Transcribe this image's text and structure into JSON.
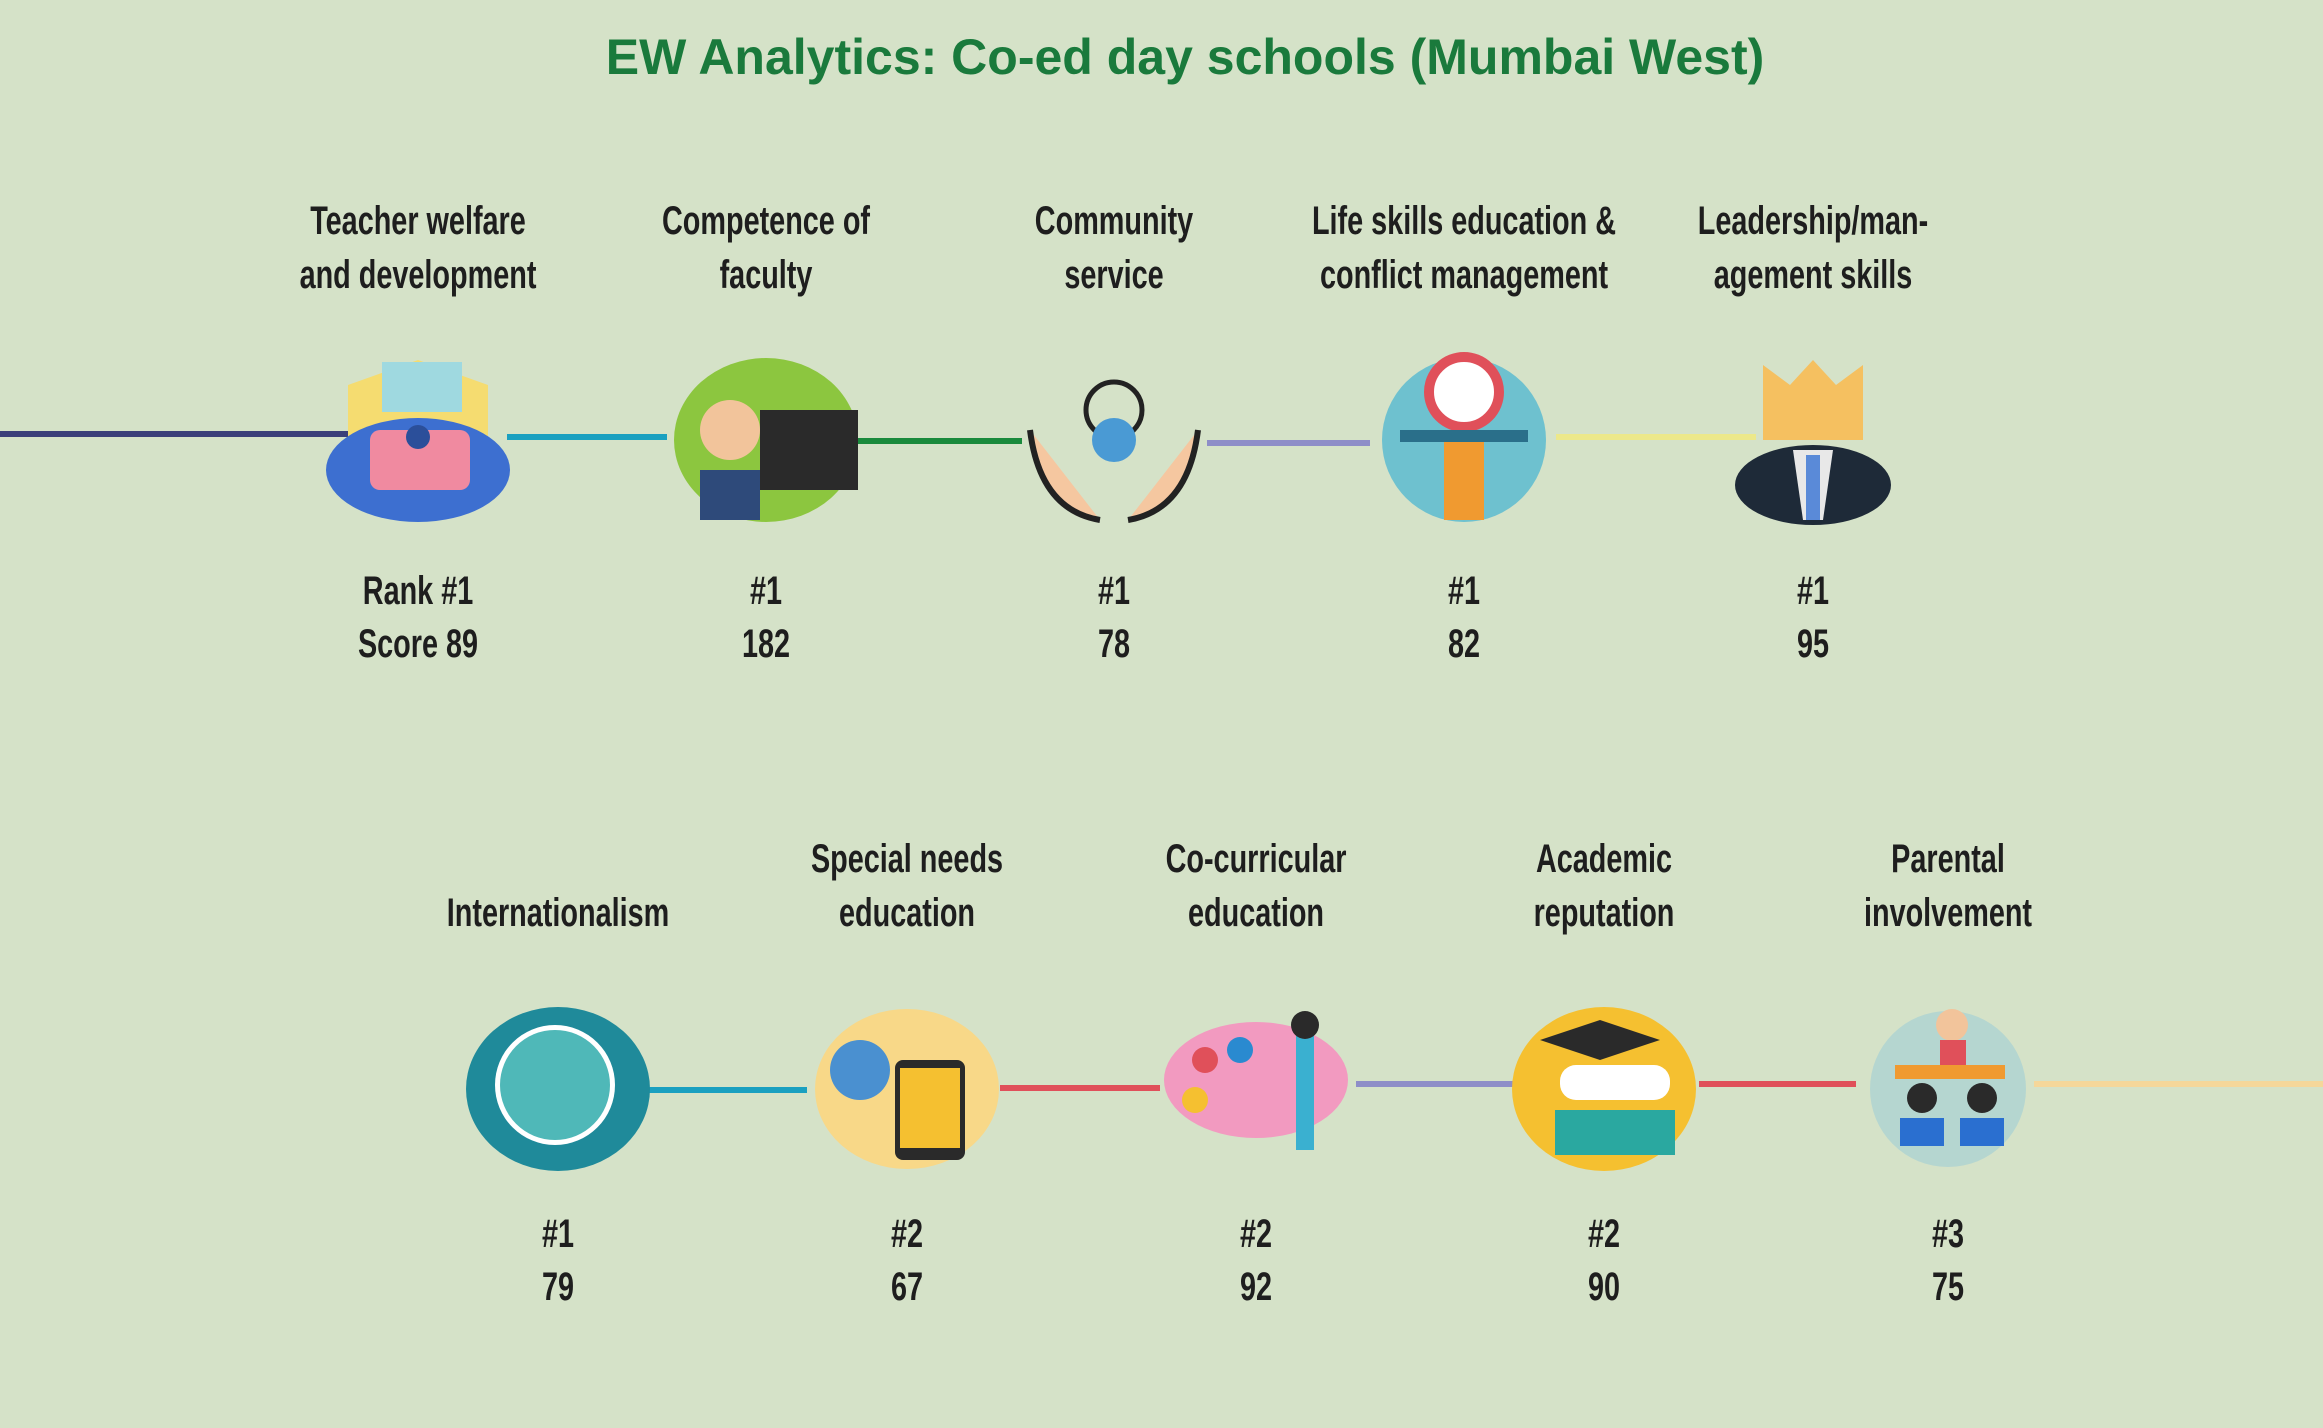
{
  "header": {
    "title": "EW Analytics: Co-ed day schools (Mumbai West)"
  },
  "rows": [
    [
      {
        "label": [
          "Teacher welfare",
          "and development"
        ],
        "rank": "Rank #1",
        "score": "Score 89"
      },
      {
        "label": [
          "Competence of",
          "faculty"
        ],
        "rank": "#1",
        "score": "182"
      },
      {
        "label": [
          "Community",
          "service"
        ],
        "rank": "#1",
        "score": "78"
      },
      {
        "label": [
          "Life skills education &",
          "conflict management"
        ],
        "rank": "#1",
        "score": "82"
      },
      {
        "label": [
          "Leadership/man-",
          "agement skills"
        ],
        "rank": "#1",
        "score": "95"
      }
    ],
    [
      {
        "label": [
          "Internationalism"
        ],
        "rank": "#1",
        "score": "79"
      },
      {
        "label": [
          "Special needs",
          "education"
        ],
        "rank": "#2",
        "score": "67"
      },
      {
        "label": [
          "Co-curricular",
          "education"
        ],
        "rank": "#2",
        "score": "92"
      },
      {
        "label": [
          "Academic",
          "reputation"
        ],
        "rank": "#2",
        "score": "90"
      },
      {
        "label": [
          "Parental",
          "involvement"
        ],
        "rank": "#3",
        "score": "75"
      }
    ]
  ]
}
